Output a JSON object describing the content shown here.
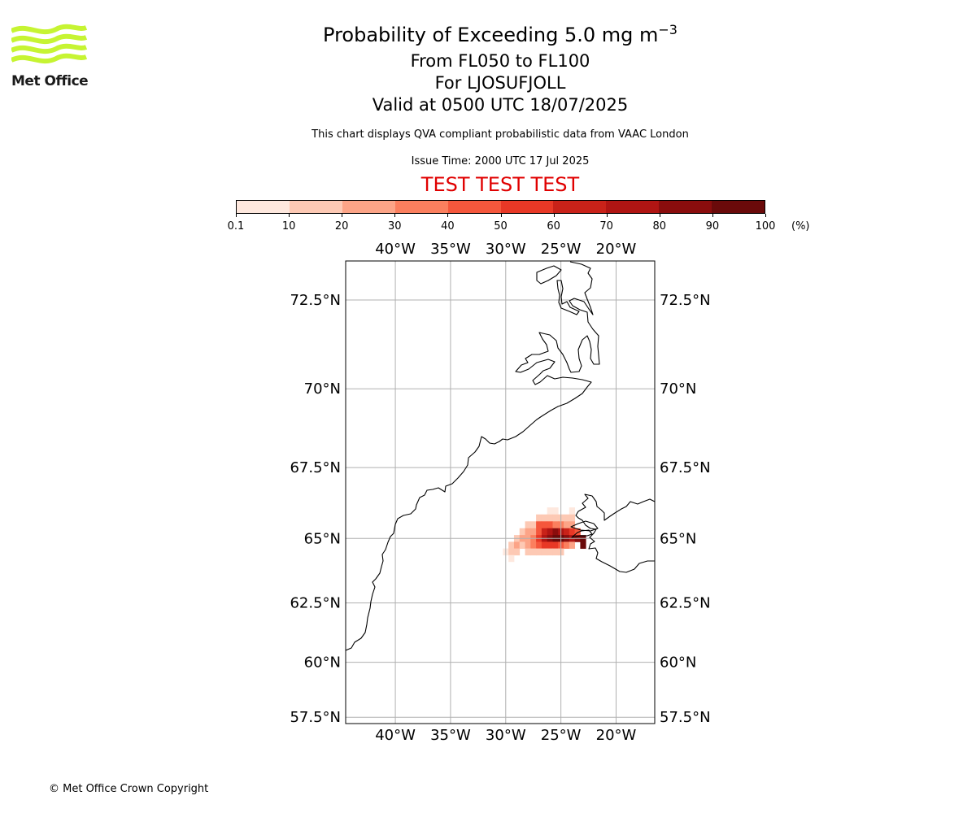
{
  "branding": {
    "logo_text": "Met Office",
    "logo_color": "#c6f432"
  },
  "header": {
    "title_main": "Probability of Exceeding 5.0 mg m",
    "title_exponent": "−3",
    "flight_levels": "From FL050 to FL100",
    "location": "For LJOSUFJOLL",
    "valid_time": "Valid at 0500 UTC 18/07/2025",
    "subtitle": "This chart displays QVA compliant probabilistic data from VAAC London",
    "issue_time": "Issue Time: 2000 UTC 17 Jul 2025",
    "test_banner": "TEST TEST TEST",
    "test_color": "#e00000"
  },
  "colorbar": {
    "ticks": [
      "0.1",
      "10",
      "20",
      "30",
      "40",
      "50",
      "60",
      "70",
      "80",
      "90",
      "100"
    ],
    "unit": "(%)",
    "colors": [
      "#fee8de",
      "#fdc9b4",
      "#fca487",
      "#fb7f5e",
      "#f5573c",
      "#e83826",
      "#c92219",
      "#b01513",
      "#8a0d0d",
      "#6a0a0a"
    ]
  },
  "map": {
    "lon_range": [
      -44.5,
      -16.5
    ],
    "lat_range": [
      57.2,
      73.5
    ],
    "lon_ticks": [
      "40°W",
      "35°W",
      "30°W",
      "25°W",
      "20°W"
    ],
    "lon_values": [
      -40,
      -35,
      -30,
      -25,
      -20
    ],
    "lat_ticks": [
      "72.5°N",
      "70°N",
      "67.5°N",
      "65°N",
      "62.5°N",
      "60°N",
      "57.5°N"
    ],
    "lat_values": [
      72.5,
      70,
      67.5,
      65,
      62.5,
      60,
      57.5
    ],
    "gridlines": true,
    "probability_cells": [
      {
        "lon": -26.0,
        "lat": 66.0,
        "p": 5
      },
      {
        "lon": -25.5,
        "lat": 66.0,
        "p": 5
      },
      {
        "lon": -24.0,
        "lat": 66.0,
        "p": 5
      },
      {
        "lon": -27.0,
        "lat": 65.75,
        "p": 15
      },
      {
        "lon": -26.5,
        "lat": 65.75,
        "p": 15
      },
      {
        "lon": -26.0,
        "lat": 65.75,
        "p": 15
      },
      {
        "lon": -25.5,
        "lat": 65.75,
        "p": 15
      },
      {
        "lon": -25.0,
        "lat": 65.75,
        "p": 15
      },
      {
        "lon": -24.5,
        "lat": 65.75,
        "p": 15
      },
      {
        "lon": -24.0,
        "lat": 65.75,
        "p": 15
      },
      {
        "lon": -28.0,
        "lat": 65.5,
        "p": 15
      },
      {
        "lon": -27.5,
        "lat": 65.5,
        "p": 15
      },
      {
        "lon": -27.0,
        "lat": 65.5,
        "p": 45
      },
      {
        "lon": -26.5,
        "lat": 65.5,
        "p": 45
      },
      {
        "lon": -26.0,
        "lat": 65.5,
        "p": 45
      },
      {
        "lon": -25.5,
        "lat": 65.5,
        "p": 35
      },
      {
        "lon": -25.0,
        "lat": 65.5,
        "p": 35
      },
      {
        "lon": -24.5,
        "lat": 65.5,
        "p": 25
      },
      {
        "lon": -24.0,
        "lat": 65.5,
        "p": 25
      },
      {
        "lon": -28.5,
        "lat": 65.25,
        "p": 15
      },
      {
        "lon": -28.0,
        "lat": 65.25,
        "p": 25
      },
      {
        "lon": -27.5,
        "lat": 65.25,
        "p": 25
      },
      {
        "lon": -27.0,
        "lat": 65.25,
        "p": 45
      },
      {
        "lon": -26.5,
        "lat": 65.25,
        "p": 65
      },
      {
        "lon": -26.0,
        "lat": 65.25,
        "p": 75
      },
      {
        "lon": -25.5,
        "lat": 65.25,
        "p": 85
      },
      {
        "lon": -25.0,
        "lat": 65.25,
        "p": 75
      },
      {
        "lon": -24.5,
        "lat": 65.25,
        "p": 65
      },
      {
        "lon": -24.0,
        "lat": 65.25,
        "p": 55
      },
      {
        "lon": -23.5,
        "lat": 65.25,
        "p": 45
      },
      {
        "lon": -29.0,
        "lat": 65.0,
        "p": 15
      },
      {
        "lon": -28.5,
        "lat": 65.0,
        "p": 25
      },
      {
        "lon": -28.0,
        "lat": 65.0,
        "p": 25
      },
      {
        "lon": -27.5,
        "lat": 65.0,
        "p": 35
      },
      {
        "lon": -27.0,
        "lat": 65.0,
        "p": 55
      },
      {
        "lon": -26.5,
        "lat": 65.0,
        "p": 75
      },
      {
        "lon": -26.0,
        "lat": 65.0,
        "p": 85
      },
      {
        "lon": -25.5,
        "lat": 65.0,
        "p": 95
      },
      {
        "lon": -25.0,
        "lat": 65.0,
        "p": 95
      },
      {
        "lon": -24.5,
        "lat": 65.0,
        "p": 85
      },
      {
        "lon": -24.0,
        "lat": 65.0,
        "p": 75
      },
      {
        "lon": -23.5,
        "lat": 65.0,
        "p": 85
      },
      {
        "lon": -23.0,
        "lat": 65.0,
        "p": 95
      },
      {
        "lon": -29.5,
        "lat": 64.75,
        "p": 15
      },
      {
        "lon": -29.0,
        "lat": 64.75,
        "p": 25
      },
      {
        "lon": -28.5,
        "lat": 64.75,
        "p": 15
      },
      {
        "lon": -28.0,
        "lat": 64.75,
        "p": 25
      },
      {
        "lon": -27.5,
        "lat": 64.75,
        "p": 35
      },
      {
        "lon": -27.0,
        "lat": 64.75,
        "p": 45
      },
      {
        "lon": -26.5,
        "lat": 64.75,
        "p": 55
      },
      {
        "lon": -26.0,
        "lat": 64.75,
        "p": 55
      },
      {
        "lon": -25.5,
        "lat": 64.75,
        "p": 55
      },
      {
        "lon": -25.0,
        "lat": 64.75,
        "p": 45
      },
      {
        "lon": -24.5,
        "lat": 64.75,
        "p": 35
      },
      {
        "lon": -24.0,
        "lat": 64.75,
        "p": 25
      },
      {
        "lon": -23.0,
        "lat": 64.75,
        "p": 95
      },
      {
        "lon": -30.0,
        "lat": 64.5,
        "p": 5
      },
      {
        "lon": -29.5,
        "lat": 64.5,
        "p": 15
      },
      {
        "lon": -29.0,
        "lat": 64.5,
        "p": 15
      },
      {
        "lon": -28.0,
        "lat": 64.5,
        "p": 15
      },
      {
        "lon": -27.5,
        "lat": 64.5,
        "p": 15
      },
      {
        "lon": -27.0,
        "lat": 64.5,
        "p": 15
      },
      {
        "lon": -26.5,
        "lat": 64.5,
        "p": 15
      },
      {
        "lon": -26.0,
        "lat": 64.5,
        "p": 15
      },
      {
        "lon": -25.5,
        "lat": 64.5,
        "p": 15
      },
      {
        "lon": -25.0,
        "lat": 64.5,
        "p": 15
      },
      {
        "lon": -29.5,
        "lat": 64.25,
        "p": 5
      }
    ]
  },
  "footer": {
    "copyright": "© Met Office Crown Copyright"
  }
}
